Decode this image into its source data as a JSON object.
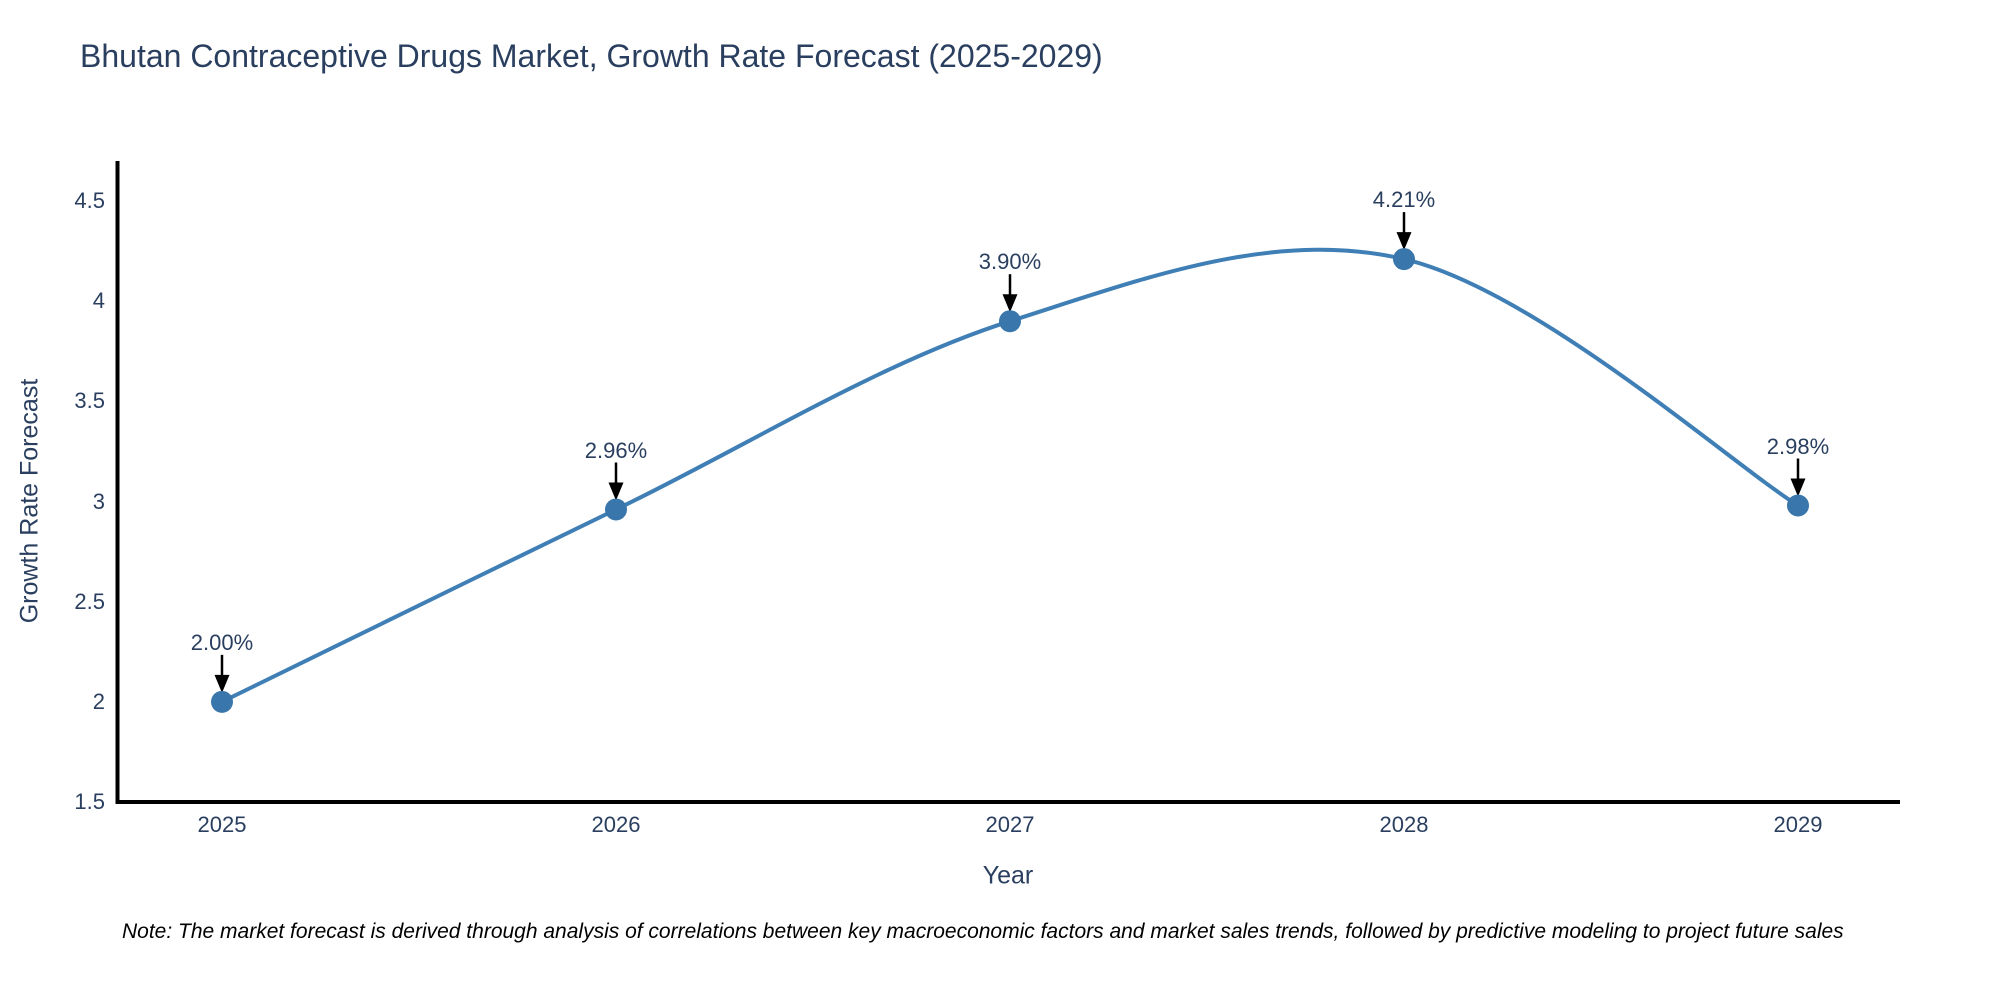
{
  "chart_data": {
    "type": "line",
    "line_shape": "spline",
    "title": "Bhutan Contraceptive Drugs Market, Growth Rate Forecast (2025-2029)",
    "xlabel": "Year",
    "ylabel": "Growth Rate Forecast",
    "x": [
      2025,
      2026,
      2027,
      2028,
      2029
    ],
    "categories": [
      "2025",
      "2026",
      "2027",
      "2028",
      "2029"
    ],
    "series": [
      {
        "name": "Growth Rate Forecast",
        "values": [
          2.0,
          2.96,
          3.9,
          4.21,
          2.98
        ]
      }
    ],
    "point_labels": [
      "2.00%",
      "2.96%",
      "3.90%",
      "4.21%",
      "2.98%"
    ],
    "ylim": [
      1.5,
      4.5
    ],
    "yticks": [
      1.5,
      2.0,
      2.5,
      3.0,
      3.5,
      4.0,
      4.5
    ],
    "ytick_labels": [
      "1.5",
      "2",
      "2.5",
      "3",
      "3.5",
      "4",
      "4.5"
    ],
    "grid": false,
    "legend_position": "none",
    "colors": {
      "line": "#3f7fb5",
      "marker": "#3876ab",
      "axis": "#000000",
      "text": "#2a3f5f",
      "annotation_arrow": "#000000"
    }
  },
  "note": {
    "text": "Note: The market forecast is derived through analysis of correlations between key macroeconomic factors and market sales trends, followed by predictive modeling to project future sales"
  }
}
